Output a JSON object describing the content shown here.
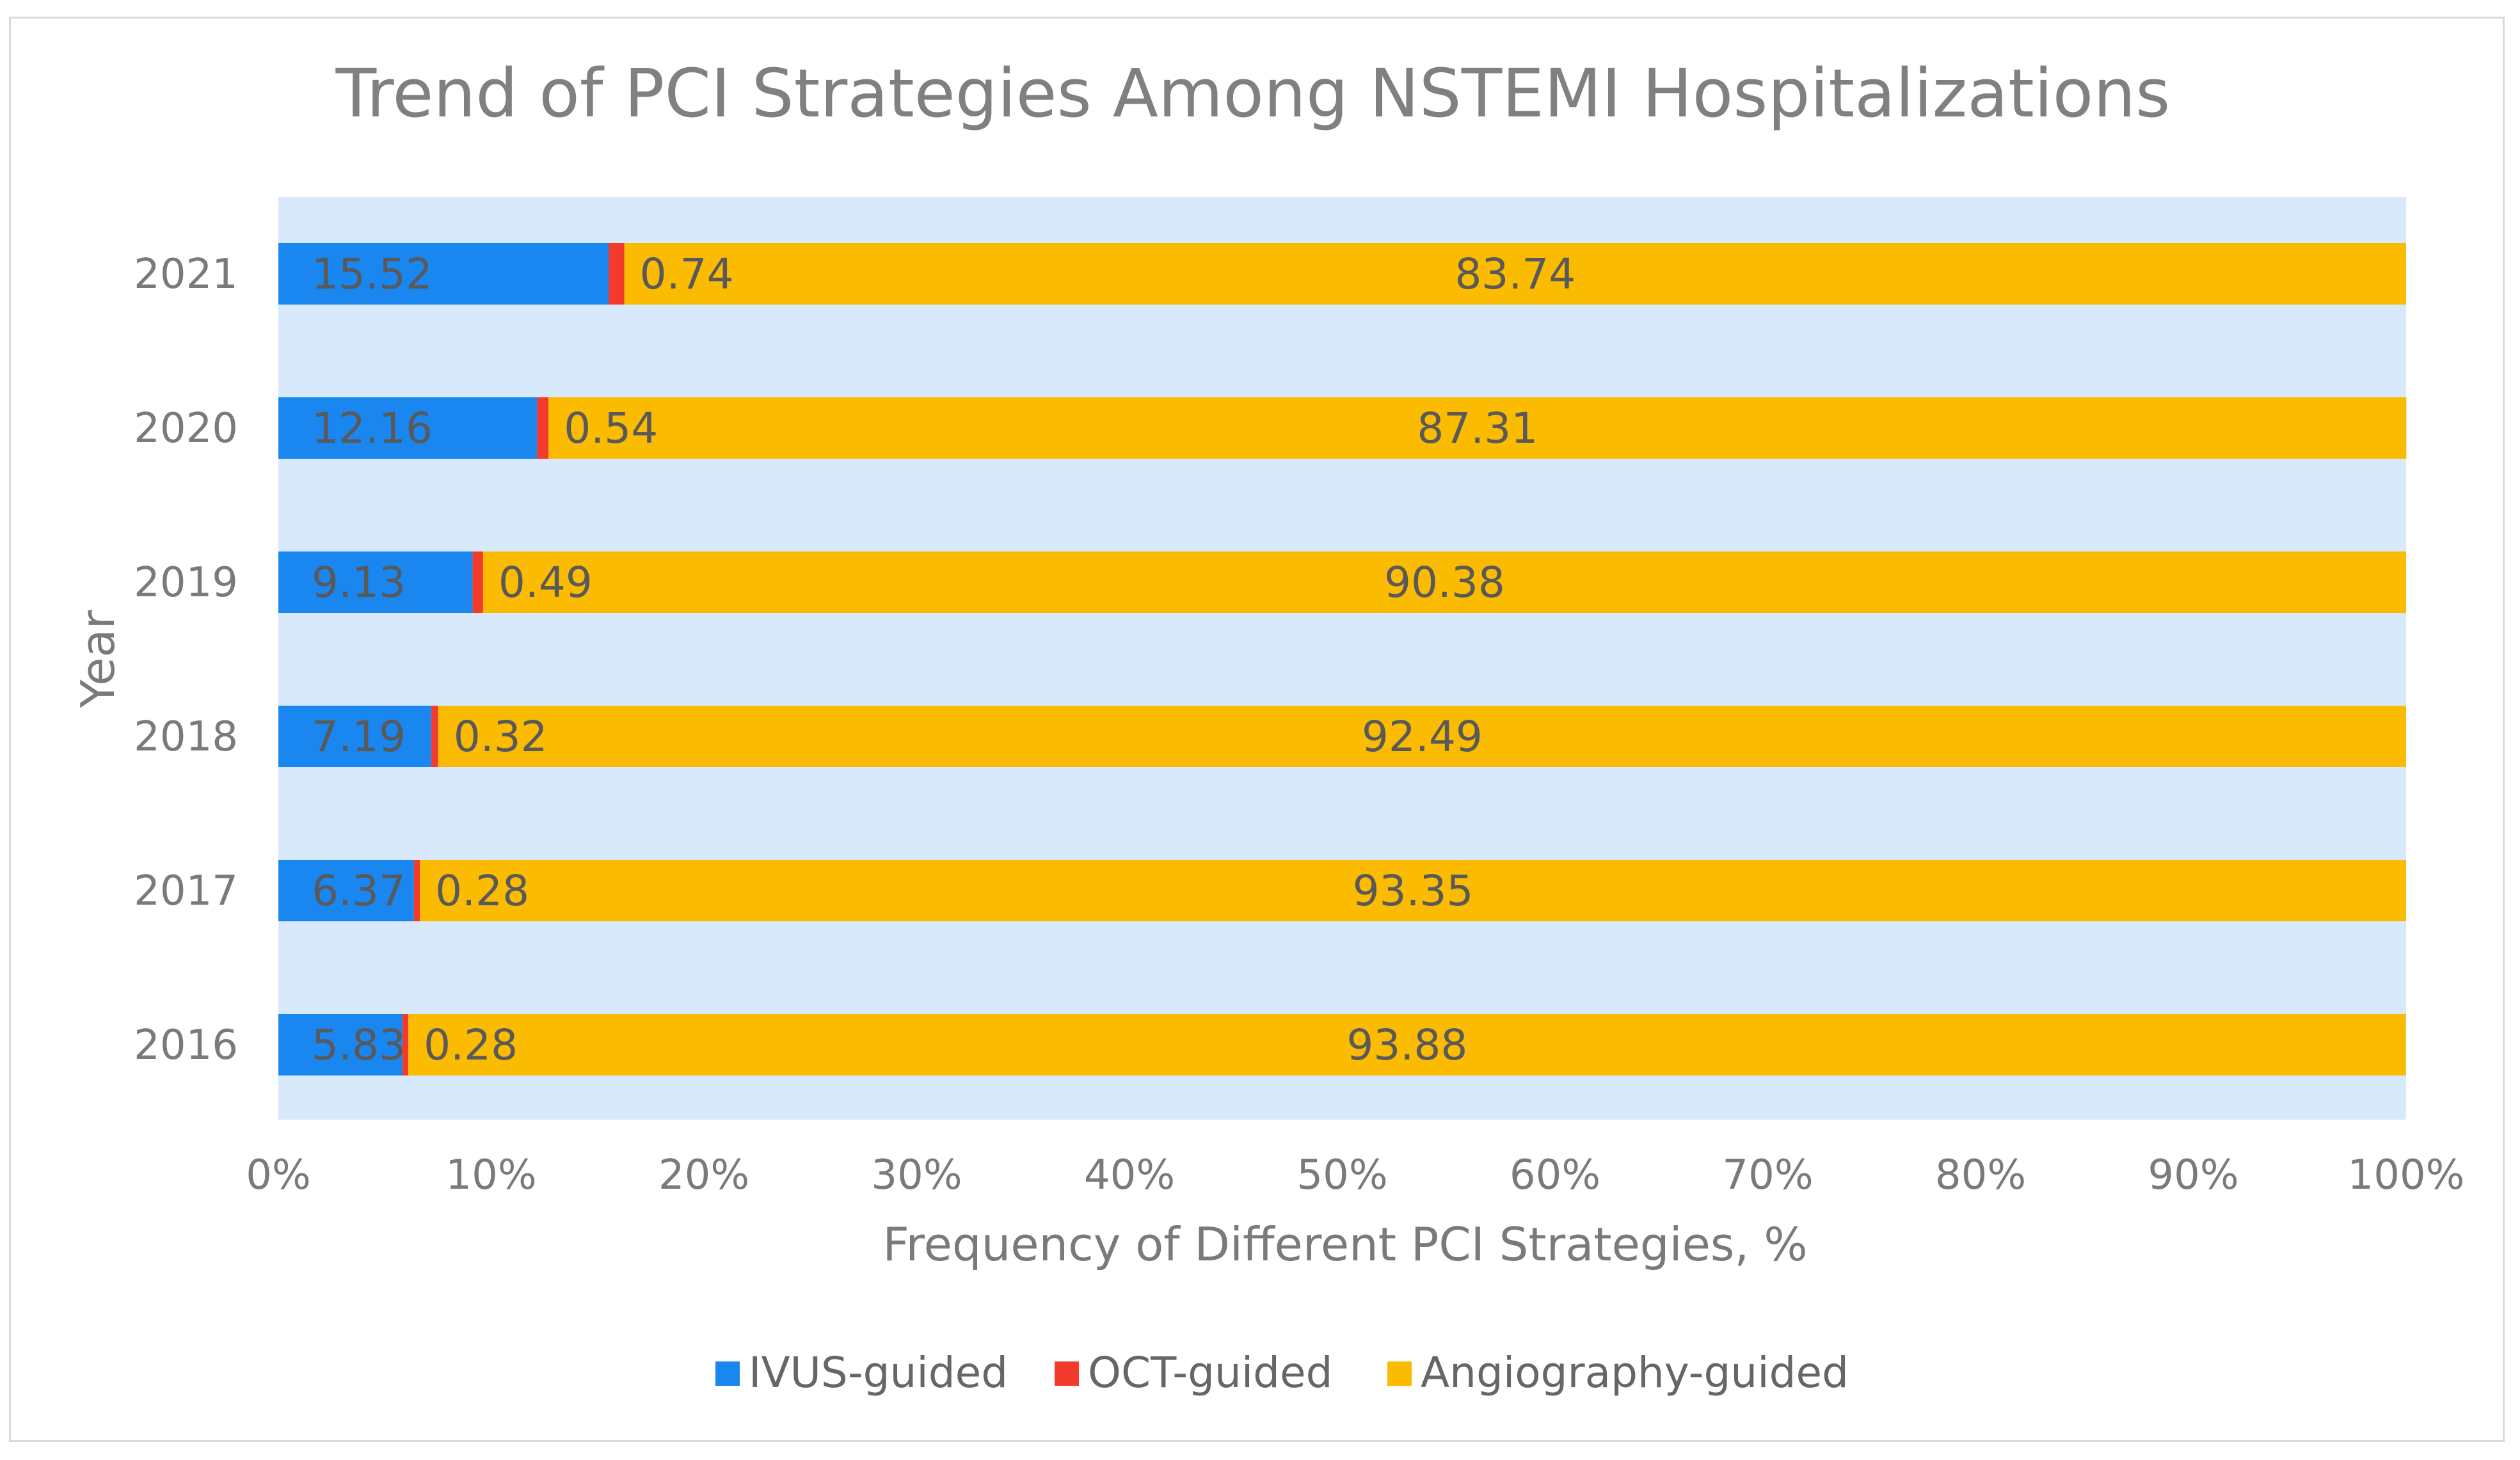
{
  "chart_data": {
    "type": "bar",
    "orientation": "horizontal",
    "stacked": "percent",
    "title": "Trend of PCI Strategies Among NSTEMI Hospitalizations",
    "xlabel": "Frequency of Different PCI Strategies, %",
    "ylabel": "Year",
    "categories": [
      "2021",
      "2020",
      "2019",
      "2018",
      "2017",
      "2016"
    ],
    "series": [
      {
        "name": "IVUS-guided",
        "color": "#1a86f0",
        "values": [
          15.52,
          12.16,
          9.13,
          7.19,
          6.37,
          5.83
        ]
      },
      {
        "name": "OCT-guided",
        "color": "#f23b2c",
        "values": [
          0.74,
          0.54,
          0.49,
          0.32,
          0.28,
          0.28
        ]
      },
      {
        "name": "Angiography-guided",
        "color": "#fbbb00",
        "values": [
          83.74,
          87.31,
          90.38,
          92.49,
          93.35,
          93.88
        ]
      }
    ],
    "x_ticks": [
      "0%",
      "10%",
      "20%",
      "30%",
      "40%",
      "50%",
      "60%",
      "70%",
      "80%",
      "90%",
      "100%"
    ],
    "xlim": [
      0,
      100
    ],
    "plot_background": "#d7e9fb",
    "grid": false,
    "legend_position": "bottom"
  }
}
